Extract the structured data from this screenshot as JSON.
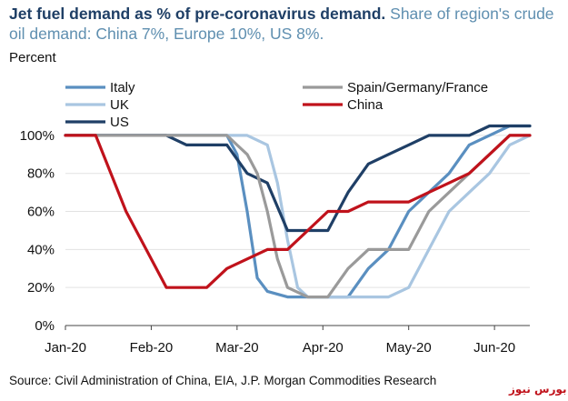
{
  "header": {
    "title_bold": "Jet fuel demand as % of pre-coronavirus demand.",
    "title_rest": " Share of region's crude oil demand: China 7%, Europe 10%, US 8%."
  },
  "footer": {
    "source": "Source: Civil Administration of China, EIA, J.P. Morgan Commodities Research",
    "watermark": "بورس نیوز"
  },
  "chart_data": {
    "type": "line",
    "ylabel": "Percent",
    "xlabel": "",
    "x_tick_labels": [
      "Jan-20",
      "Feb-20",
      "Mar-20",
      "Apr-20",
      "May-20",
      "Jun-20"
    ],
    "y_tick_labels": [
      "0%",
      "20%",
      "40%",
      "60%",
      "80%",
      "100%"
    ],
    "ylim": [
      0,
      110
    ],
    "xlim": [
      0,
      23
    ],
    "legend_position": "top",
    "series": [
      {
        "name": "Italy",
        "color": "#5a8fc0",
        "x": [
          0,
          7,
          8,
          8.5,
          9,
          9.5,
          10,
          11,
          12,
          13,
          14,
          15,
          16,
          17,
          18,
          19,
          20,
          21,
          22,
          23
        ],
        "values": [
          100,
          100,
          100,
          90,
          60,
          25,
          18,
          15,
          15,
          15,
          15,
          30,
          40,
          60,
          70,
          80,
          95,
          100,
          105,
          105
        ]
      },
      {
        "name": "UK",
        "color": "#a9c6e1",
        "x": [
          0,
          9,
          10,
          10.5,
          11,
          11.5,
          12,
          13,
          14,
          15,
          16,
          17,
          18,
          19,
          20,
          21,
          22,
          23
        ],
        "values": [
          100,
          100,
          95,
          75,
          45,
          20,
          15,
          15,
          15,
          15,
          15,
          20,
          40,
          60,
          70,
          80,
          95,
          100
        ]
      },
      {
        "name": "US",
        "color": "#1f3f66",
        "x": [
          0,
          5,
          6,
          7,
          8,
          9,
          10,
          11,
          12,
          13,
          14,
          15,
          16,
          17,
          18,
          19,
          20,
          21,
          22,
          23
        ],
        "values": [
          100,
          100,
          95,
          95,
          95,
          80,
          75,
          50,
          50,
          50,
          70,
          85,
          90,
          95,
          100,
          100,
          100,
          105,
          105,
          105
        ]
      },
      {
        "name": "Spain/Germany/France",
        "color": "#9a9a9a",
        "x": [
          0,
          8,
          8.5,
          9,
          9.5,
          10,
          10.5,
          11,
          12,
          13,
          14,
          15,
          16,
          17,
          18,
          19,
          20,
          21,
          22,
          23
        ],
        "values": [
          100,
          100,
          95,
          90,
          80,
          60,
          35,
          20,
          15,
          15,
          30,
          40,
          40,
          40,
          60,
          70,
          80,
          90,
          100,
          100
        ]
      },
      {
        "name": "China",
        "color": "#c0121b",
        "x": [
          0,
          1.5,
          3,
          4,
          5,
          6,
          7,
          8,
          9,
          10,
          11,
          12,
          13,
          14,
          15,
          16,
          17,
          18,
          19,
          20,
          21,
          22,
          23
        ],
        "values": [
          100,
          100,
          60,
          40,
          20,
          20,
          20,
          30,
          35,
          40,
          40,
          50,
          60,
          60,
          65,
          65,
          65,
          70,
          75,
          80,
          90,
          100,
          100
        ]
      }
    ]
  }
}
